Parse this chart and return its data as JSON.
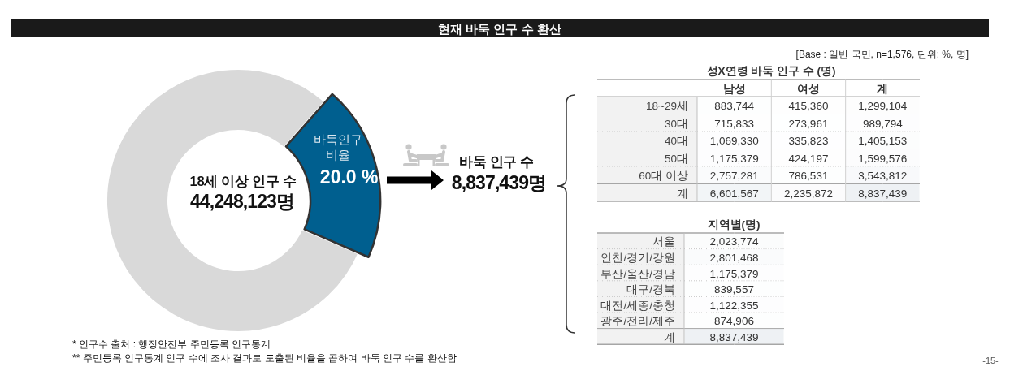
{
  "chart_data": [
    {
      "type": "donut",
      "title": "현재 바둑 인구 수 환산",
      "categories": [
        "바둑인구 비율",
        null
      ],
      "values": [
        20.0,
        80.0
      ],
      "colors": [
        "#005f8f",
        "#d9d9d9"
      ],
      "value_labels": [
        "20.0 %",
        null
      ],
      "annotations": [
        "18세 이상 인구 수",
        "44,248,123명",
        "바둑 인구 수",
        "8,837,439명",
        "* 인구수 출처 : 행정안전부 주민등록 인구통계",
        "** 주민등록 인구통계 인구 수에 조사 결과로 도출된 비율을 곱하여 바둑 인구 수를 환산함",
        "-15-"
      ]
    },
    {
      "type": "heatmap",
      "title": "성X연령 바둑 인구 수 (명)",
      "annotations": [
        "[Base : 일반 국민, n=1,576, 단위: %, 명]"
      ],
      "categories": [
        "남성",
        "여성",
        "계"
      ],
      "y_categories": [
        "18~29세",
        "30대",
        "40대",
        "50대",
        "60대 이상",
        "계"
      ],
      "cells": [
        [
          883744,
          415360,
          1299104
        ],
        [
          715833,
          273961,
          989794
        ],
        [
          1069330,
          335823,
          1405153
        ],
        [
          1175379,
          424197,
          1599576
        ],
        [
          2757281,
          786531,
          3543812
        ],
        [
          6601567,
          2235872,
          8837439
        ]
      ],
      "cell_labels": [
        [
          "883,744",
          "415,360",
          "1,299,104"
        ],
        [
          "715,833",
          "273,961",
          "989,794"
        ],
        [
          "1,069,330",
          "335,823",
          "1,405,153"
        ],
        [
          "1,175,379",
          "424,197",
          "1,599,576"
        ],
        [
          "2,757,281",
          "786,531",
          "3,543,812"
        ],
        [
          "6,601,567",
          "2,235,872",
          "8,837,439"
        ]
      ]
    },
    {
      "type": "heatmap",
      "title": "지역별(명)",
      "categories": [
        null
      ],
      "y_categories": [
        "서울",
        "인천/경기/강원",
        "부산/울산/경남",
        "대구/경북",
        "대전/세종/충청",
        "광주/전라/제주",
        "계"
      ],
      "cells": [
        [
          2023774
        ],
        [
          2801468
        ],
        [
          1175379
        ],
        [
          839557
        ],
        [
          1122355
        ],
        [
          874906
        ],
        [
          8837439
        ]
      ],
      "cell_labels": [
        [
          "2,023,774"
        ],
        [
          "2,801,468"
        ],
        [
          "1,175,379"
        ],
        [
          "839,557"
        ],
        [
          "1,122,355"
        ],
        [
          "874,906"
        ],
        [
          "8,837,439"
        ]
      ]
    }
  ]
}
